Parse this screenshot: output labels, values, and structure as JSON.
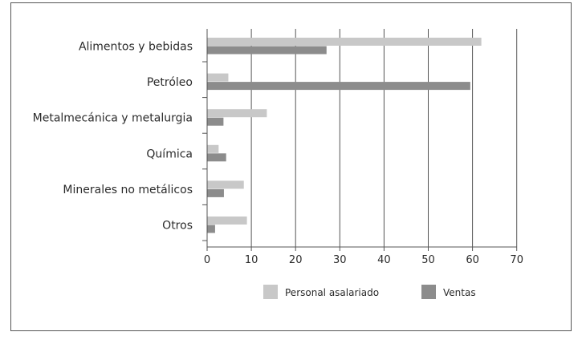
{
  "chart_data": {
    "type": "bar",
    "orientation": "horizontal",
    "categories": [
      "Alimentos y bebidas",
      "Petróleo",
      "Metalmecánica y metalurgia",
      "Química",
      "Minerales no metálicos",
      "Otros"
    ],
    "series": [
      {
        "name": "Personal asalariado",
        "color": "#c8c8c8",
        "values": [
          62,
          4.8,
          13.5,
          2.6,
          8.3,
          9
        ]
      },
      {
        "name": "Ventas",
        "color": "#8c8c8c",
        "values": [
          27,
          59.5,
          3.7,
          4.3,
          3.8,
          1.8
        ]
      }
    ],
    "xlim": [
      0,
      70
    ],
    "xticks": [
      "0",
      "10",
      "20",
      "30",
      "40",
      "50",
      "60",
      "70"
    ],
    "grid": true,
    "legend_position": "bottom"
  }
}
